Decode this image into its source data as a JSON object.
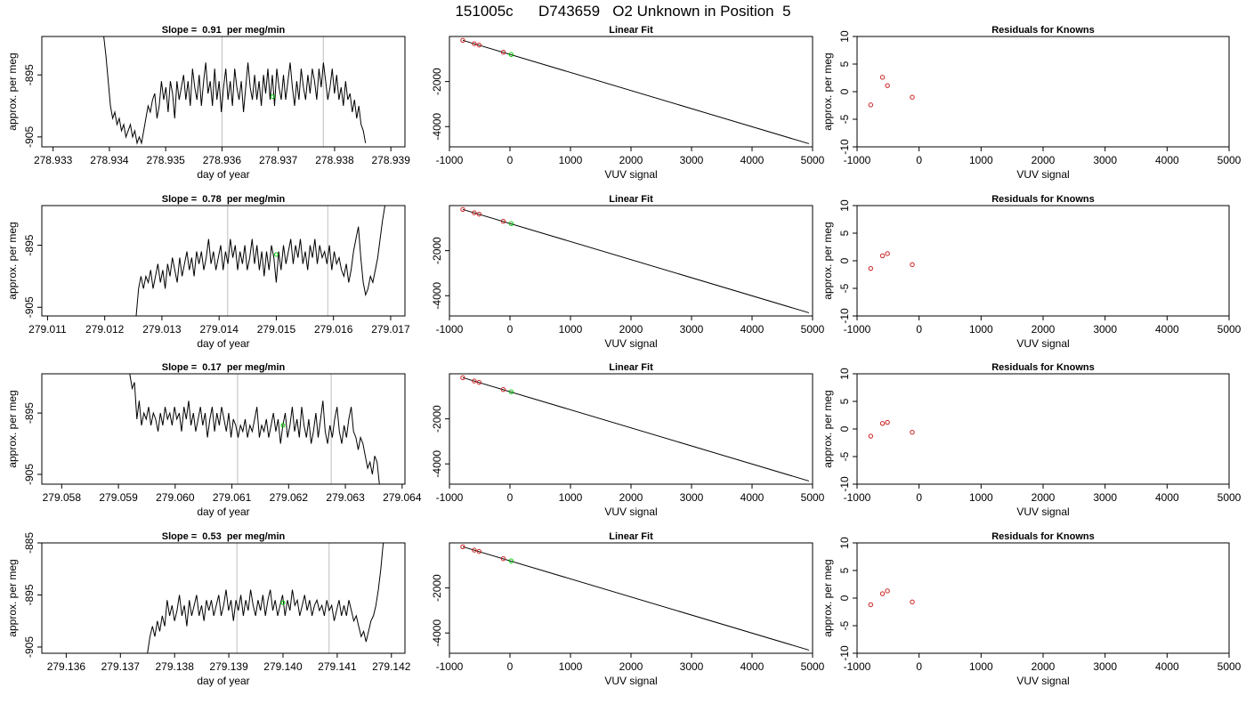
{
  "header": {
    "title": "151005c      D743659   O2 Unknown in Position  5"
  },
  "colors": {
    "trace": "#000000",
    "vline": "#bebebe",
    "known": "#cc2222",
    "unknown": "#00cc00",
    "fit": "#000000"
  },
  "chart_data": [
    {
      "type": "line",
      "panel": "time-series",
      "row": 1,
      "title": "Slope =  0.91  per meg/min",
      "xlabel": "day of year",
      "ylabel": "approx. per meg",
      "xlim": [
        278.9328,
        278.93925
      ],
      "ylim": [
        -906.6,
        -888.8
      ],
      "xticks": [
        "278.933",
        "278.934",
        "278.935",
        "278.936",
        "278.937",
        "278.938",
        "278.939"
      ],
      "yticks": [
        "-895",
        "-905"
      ],
      "vlines": [
        278.936,
        278.9378
      ],
      "unknown_point": {
        "x": 278.9369,
        "y": -898.5
      },
      "trace": {
        "x_start": 278.9339,
        "x_end": 278.93855,
        "y": [
          -888.8,
          -892,
          -896,
          -900,
          -902,
          -901,
          -903,
          -902,
          -904,
          -903,
          -905,
          -904,
          -903,
          -905,
          -904,
          -906,
          -905,
          -906,
          -904,
          -902,
          -900,
          -901,
          -899,
          -898,
          -902,
          -900,
          -896,
          -899,
          -897,
          -901,
          -896,
          -898,
          -902,
          -896,
          -899,
          -897,
          -895,
          -899,
          -896,
          -900,
          -894,
          -897,
          -899,
          -895,
          -900,
          -896,
          -893,
          -898,
          -896,
          -900,
          -894,
          -899,
          -896,
          -901,
          -897,
          -894,
          -899,
          -896,
          -900,
          -894,
          -897,
          -899,
          -896,
          -901,
          -897,
          -893,
          -897,
          -899,
          -895,
          -899,
          -896,
          -900,
          -895,
          -898,
          -894,
          -899,
          -895,
          -900,
          -894,
          -897,
          -899,
          -895,
          -899,
          -896,
          -893,
          -897,
          -900,
          -896,
          -899,
          -894,
          -897,
          -899,
          -895,
          -898,
          -894,
          -896,
          -899,
          -894,
          -897,
          -893,
          -896,
          -899,
          -897,
          -894,
          -898,
          -895,
          -899,
          -897,
          -900,
          -896,
          -899,
          -898,
          -901,
          -899,
          -902,
          -900,
          -903,
          -904,
          -906
        ]
      }
    },
    {
      "type": "scatter",
      "panel": "linear-fit",
      "row": 1,
      "title": "Linear Fit",
      "xlabel": "VUV signal",
      "ylabel": "",
      "xlim": [
        -1000,
        5000
      ],
      "ylim": [
        -4900,
        0
      ],
      "xticks": [
        "-1000",
        "0",
        "1000",
        "2000",
        "3000",
        "4000",
        "5000"
      ],
      "yticks": [
        "-2000",
        "-4000"
      ],
      "fit_line": [
        [
          -780,
          -170
        ],
        [
          4940,
          -4760
        ]
      ],
      "knowns": [
        {
          "x": -780,
          "y": -170
        },
        {
          "x": -590,
          "y": -320
        },
        {
          "x": -510,
          "y": -380
        },
        {
          "x": -110,
          "y": -700
        }
      ],
      "unknown": {
        "x": 20,
        "y": -800
      }
    },
    {
      "type": "scatter",
      "panel": "residuals",
      "row": 1,
      "title": "Residuals for Knowns",
      "xlabel": "VUV signal",
      "ylabel": "approx. per meg",
      "xlim": [
        -1000,
        5000
      ],
      "ylim": [
        -10,
        10
      ],
      "xticks": [
        "-1000",
        "0",
        "1000",
        "2000",
        "3000",
        "4000",
        "5000"
      ],
      "yticks": [
        "10",
        "5",
        "0",
        "-5",
        "-10"
      ],
      "points": [
        {
          "x": -780,
          "y": -2.4
        },
        {
          "x": -590,
          "y": 2.6
        },
        {
          "x": -510,
          "y": 1.1
        },
        {
          "x": -110,
          "y": -1.0
        }
      ]
    },
    {
      "type": "line",
      "panel": "time-series",
      "row": 2,
      "title": "Slope =  0.78  per meg/min",
      "xlabel": "day of year",
      "ylabel": "approx. per meg",
      "xlim": [
        279.0109,
        279.01725
      ],
      "ylim": [
        -906.4,
        -888.6
      ],
      "xticks": [
        "279.011",
        "279.012",
        "279.013",
        "279.014",
        "279.015",
        "279.016",
        "279.017"
      ],
      "yticks": [
        "-895",
        "-905"
      ],
      "vlines": [
        279.01415,
        279.0159
      ],
      "unknown_point": {
        "x": 279.015,
        "y": -896.5
      },
      "trace": {
        "x_start": 279.01255,
        "x_end": 279.0169,
        "y": [
          -906.4,
          -902,
          -900,
          -902,
          -900,
          -901,
          -899,
          -902,
          -900,
          -898,
          -901,
          -899,
          -902,
          -898,
          -900,
          -897,
          -899,
          -901,
          -897,
          -900,
          -898,
          -896,
          -899,
          -897,
          -900,
          -896,
          -898,
          -896,
          -899,
          -897,
          -894,
          -898,
          -896,
          -899,
          -897,
          -895,
          -899,
          -896,
          -898,
          -894,
          -897,
          -895,
          -899,
          -896,
          -898,
          -895,
          -899,
          -897,
          -894,
          -898,
          -895,
          -899,
          -896,
          -900,
          -896,
          -899,
          -895,
          -897,
          -901,
          -896,
          -899,
          -895,
          -898,
          -896,
          -894,
          -898,
          -895,
          -897,
          -894,
          -898,
          -896,
          -899,
          -895,
          -897,
          -894,
          -898,
          -895,
          -897,
          -896,
          -898,
          -895,
          -899,
          -896,
          -898,
          -897,
          -899,
          -900,
          -898,
          -901,
          -899,
          -896,
          -894,
          -892,
          -897,
          -901,
          -903,
          -902,
          -900,
          -901,
          -899,
          -897,
          -894,
          -891,
          -888.6
        ]
      }
    },
    {
      "type": "scatter",
      "panel": "linear-fit",
      "row": 2,
      "title": "Linear Fit",
      "xlabel": "VUV signal",
      "ylabel": "",
      "xlim": [
        -1000,
        5000
      ],
      "ylim": [
        -4900,
        0
      ],
      "xticks": [
        "-1000",
        "0",
        "1000",
        "2000",
        "3000",
        "4000",
        "5000"
      ],
      "yticks": [
        "-2000",
        "-4000"
      ],
      "fit_line": [
        [
          -780,
          -170
        ],
        [
          4940,
          -4760
        ]
      ],
      "knowns": [
        {
          "x": -780,
          "y": -170
        },
        {
          "x": -590,
          "y": -320
        },
        {
          "x": -510,
          "y": -380
        },
        {
          "x": -110,
          "y": -700
        }
      ],
      "unknown": {
        "x": 20,
        "y": -800
      }
    },
    {
      "type": "scatter",
      "panel": "residuals",
      "row": 2,
      "title": "Residuals for Knowns",
      "xlabel": "VUV signal",
      "ylabel": "approx. per meg",
      "xlim": [
        -1000,
        5000
      ],
      "ylim": [
        -10,
        10
      ],
      "xticks": [
        "-1000",
        "0",
        "1000",
        "2000",
        "3000",
        "4000",
        "5000"
      ],
      "yticks": [
        "10",
        "5",
        "0",
        "-5",
        "-10"
      ],
      "points": [
        {
          "x": -780,
          "y": -1.4
        },
        {
          "x": -590,
          "y": 0.9
        },
        {
          "x": -510,
          "y": 1.3
        },
        {
          "x": -110,
          "y": -0.7
        }
      ]
    },
    {
      "type": "line",
      "panel": "time-series",
      "row": 3,
      "title": "Slope =  0.17  per meg/min",
      "xlabel": "day of year",
      "ylabel": "approx. per meg",
      "xlim": [
        279.05765,
        279.06405
      ],
      "ylim": [
        -906.6,
        -888.6
      ],
      "xticks": [
        "279.058",
        "279.059",
        "279.060",
        "279.061",
        "279.062",
        "279.063",
        "279.064"
      ],
      "yticks": [
        "-895",
        "-905"
      ],
      "vlines": [
        279.0611,
        279.06275
      ],
      "unknown_point": {
        "x": 279.0619,
        "y": -897.0
      },
      "trace": {
        "x_start": 279.0592,
        "x_end": 279.0636,
        "y": [
          -888.6,
          -891,
          -890,
          -896,
          -893,
          -897,
          -895,
          -896,
          -894,
          -897,
          -895,
          -896,
          -898,
          -895,
          -897,
          -894,
          -896,
          -895,
          -897,
          -894,
          -896,
          -895,
          -898,
          -894,
          -896,
          -893,
          -897,
          -895,
          -898,
          -896,
          -894,
          -897,
          -895,
          -899,
          -896,
          -894,
          -898,
          -895,
          -897,
          -894,
          -896,
          -898,
          -895,
          -899,
          -896,
          -897,
          -899,
          -897,
          -898,
          -896,
          -899,
          -897,
          -898,
          -896,
          -894,
          -899,
          -897,
          -898,
          -896,
          -899,
          -897,
          -895,
          -898,
          -896,
          -900,
          -897,
          -895,
          -899,
          -897,
          -894,
          -898,
          -896,
          -899,
          -894,
          -897,
          -899,
          -896,
          -900,
          -898,
          -895,
          -899,
          -896,
          -893,
          -898,
          -900,
          -897,
          -899,
          -896,
          -894,
          -898,
          -900,
          -897,
          -899,
          -896,
          -894,
          -898,
          -899,
          -901,
          -899,
          -900,
          -902,
          -904,
          -903,
          -905,
          -902,
          -903,
          -906.6
        ]
      }
    },
    {
      "type": "scatter",
      "panel": "linear-fit",
      "row": 3,
      "title": "Linear Fit",
      "xlabel": "VUV signal",
      "ylabel": "",
      "xlim": [
        -1000,
        5000
      ],
      "ylim": [
        -4900,
        0
      ],
      "xticks": [
        "-1000",
        "0",
        "1000",
        "2000",
        "3000",
        "4000",
        "5000"
      ],
      "yticks": [
        "-2000",
        "-4000"
      ],
      "fit_line": [
        [
          -780,
          -170
        ],
        [
          4940,
          -4760
        ]
      ],
      "knowns": [
        {
          "x": -780,
          "y": -170
        },
        {
          "x": -590,
          "y": -320
        },
        {
          "x": -510,
          "y": -380
        },
        {
          "x": -110,
          "y": -700
        }
      ],
      "unknown": {
        "x": 20,
        "y": -800
      }
    },
    {
      "type": "scatter",
      "panel": "residuals",
      "row": 3,
      "title": "Residuals for Knowns",
      "xlabel": "VUV signal",
      "ylabel": "approx. per meg",
      "xlim": [
        -1000,
        5000
      ],
      "ylim": [
        -10,
        10
      ],
      "xticks": [
        "-1000",
        "0",
        "1000",
        "2000",
        "3000",
        "4000",
        "5000"
      ],
      "yticks": [
        "10",
        "5",
        "0",
        "-5",
        "-10"
      ],
      "points": [
        {
          "x": -780,
          "y": -1.3
        },
        {
          "x": -590,
          "y": 1.0
        },
        {
          "x": -510,
          "y": 1.2
        },
        {
          "x": -110,
          "y": -0.6
        }
      ]
    },
    {
      "type": "line",
      "panel": "time-series",
      "row": 4,
      "title": "Slope =  0.53  per meg/min",
      "xlabel": "day of year",
      "ylabel": "approx. per meg",
      "xlim": [
        279.13555,
        279.14225
      ],
      "ylim": [
        -906.2,
        -885.0
      ],
      "xticks": [
        "279.136",
        "279.137",
        "279.138",
        "279.139",
        "279.140",
        "279.141",
        "279.142"
      ],
      "yticks": [
        "-885",
        "-895",
        "-905"
      ],
      "vlines": [
        279.13915,
        279.14085
      ],
      "unknown_point": {
        "x": 279.14,
        "y": -896.5
      },
      "trace": {
        "x_start": 279.1375,
        "x_end": 279.14185,
        "y": [
          -906.2,
          -903,
          -901,
          -903,
          -900,
          -902,
          -899,
          -901,
          -896,
          -899,
          -897,
          -900,
          -898,
          -895,
          -899,
          -897,
          -901,
          -896,
          -899,
          -897,
          -895,
          -899,
          -897,
          -900,
          -896,
          -898,
          -896,
          -899,
          -897,
          -895,
          -899,
          -897,
          -894,
          -898,
          -896,
          -900,
          -896,
          -898,
          -895,
          -899,
          -896,
          -898,
          -894,
          -897,
          -899,
          -896,
          -898,
          -895,
          -899,
          -896,
          -894,
          -898,
          -896,
          -899,
          -897,
          -895,
          -899,
          -896,
          -898,
          -894,
          -897,
          -896,
          -899,
          -897,
          -895,
          -898,
          -896,
          -899,
          -897,
          -896,
          -898,
          -897,
          -899,
          -896,
          -898,
          -897,
          -900,
          -898,
          -896,
          -899,
          -897,
          -899,
          -896,
          -898,
          -900,
          -899,
          -901,
          -903,
          -902,
          -904,
          -902,
          -900,
          -899,
          -897,
          -894,
          -890,
          -885.0
        ]
      }
    },
    {
      "type": "scatter",
      "panel": "linear-fit",
      "row": 4,
      "title": "Linear Fit",
      "xlabel": "VUV signal",
      "ylabel": "",
      "xlim": [
        -1000,
        5000
      ],
      "ylim": [
        -4900,
        0
      ],
      "xticks": [
        "-1000",
        "0",
        "1000",
        "2000",
        "3000",
        "4000",
        "5000"
      ],
      "yticks": [
        "-2000",
        "-4000"
      ],
      "fit_line": [
        [
          -780,
          -170
        ],
        [
          4940,
          -4760
        ]
      ],
      "knowns": [
        {
          "x": -780,
          "y": -170
        },
        {
          "x": -590,
          "y": -320
        },
        {
          "x": -510,
          "y": -380
        },
        {
          "x": -110,
          "y": -700
        }
      ],
      "unknown": {
        "x": 20,
        "y": -800
      }
    },
    {
      "type": "scatter",
      "panel": "residuals",
      "row": 4,
      "title": "Residuals for Knowns",
      "xlabel": "VUV signal",
      "ylabel": "approx. per meg",
      "xlim": [
        -1000,
        5000
      ],
      "ylim": [
        -10,
        10
      ],
      "xticks": [
        "-1000",
        "0",
        "1000",
        "2000",
        "3000",
        "4000",
        "5000"
      ],
      "yticks": [
        "10",
        "5",
        "0",
        "-5",
        "-10"
      ],
      "points": [
        {
          "x": -780,
          "y": -1.2
        },
        {
          "x": -590,
          "y": 0.8
        },
        {
          "x": -510,
          "y": 1.3
        },
        {
          "x": -110,
          "y": -0.7
        }
      ]
    }
  ]
}
